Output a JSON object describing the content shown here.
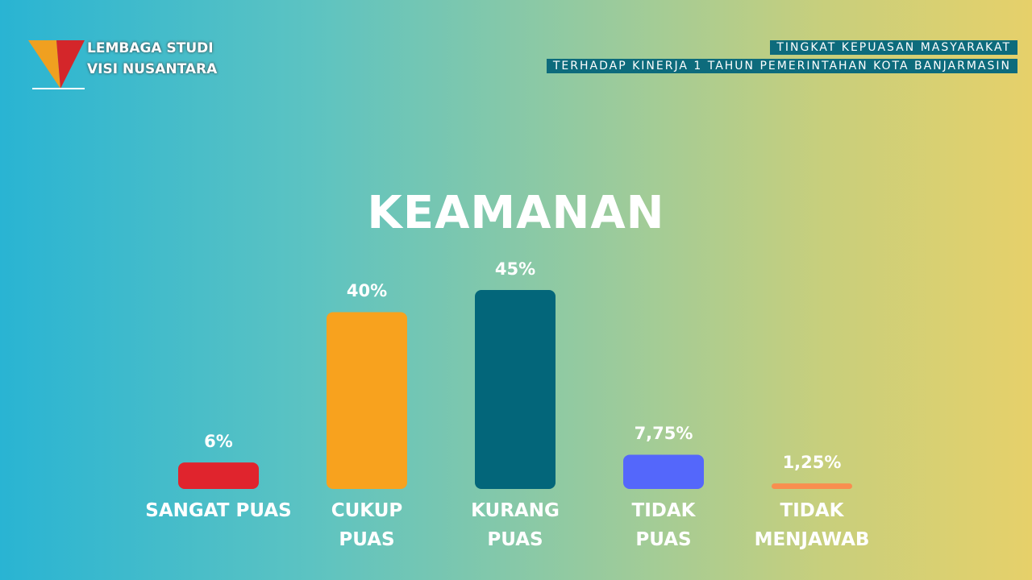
{
  "logo": {
    "line1": "LEMBAGA STUDI",
    "line2": "VISI NUSANTARA"
  },
  "header": {
    "line1": "TINGKAT KEPUASAN MASYARAKAT",
    "line2": "TERHADAP KINERJA 1 TAHUN PEMERINTAHAN KOTA BANJARMASIN"
  },
  "chart_data": {
    "type": "bar",
    "title": "KEAMANAN",
    "categories": [
      "SANGAT PUAS",
      "CUKUP\nPUAS",
      "KURANG\nPUAS",
      "TIDAK\nPUAS",
      "TIDAK\nMENJAWAB"
    ],
    "values": [
      6,
      40,
      45,
      7.75,
      1.25
    ],
    "value_labels": [
      "6%",
      "40%",
      "45%",
      "7,75%",
      "1,25%"
    ],
    "colors": [
      "#e0242d",
      "#f8a21e",
      "#03667a",
      "#5467fb",
      "#f98e4f"
    ],
    "ylim": [
      0,
      45
    ]
  }
}
